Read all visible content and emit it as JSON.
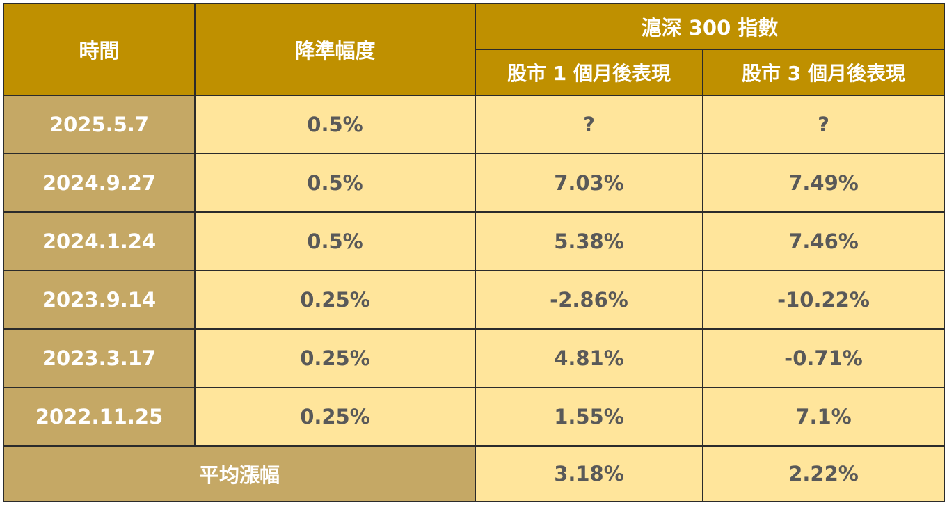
{
  "chart_data": {
    "type": "table",
    "header": {
      "time": "時間",
      "cut": "降準幅度",
      "index_group": "滬深 300 指數",
      "m1": "股市 1 個月後表現",
      "m3": "股市 3 個月後表現"
    },
    "rows": [
      {
        "date": "2025.5.7",
        "cut": "0.5%",
        "m1": "?",
        "m3": "?"
      },
      {
        "date": "2024.9.27",
        "cut": "0.5%",
        "m1": "7.03%",
        "m3": "7.49%"
      },
      {
        "date": "2024.1.24",
        "cut": "0.5%",
        "m1": "5.38%",
        "m3": "7.46%"
      },
      {
        "date": "2023.9.14",
        "cut": "0.25%",
        "m1": "-2.86%",
        "m3": "-10.22%"
      },
      {
        "date": "2023.3.17",
        "cut": "0.25%",
        "m1": "4.81%",
        "m3": "-0.71%"
      },
      {
        "date": "2022.11.25",
        "cut": "0.25%",
        "m1": "1.55%",
        "m3": "7.1%"
      }
    ],
    "average": {
      "label": "平均漲幅",
      "m1": "3.18%",
      "m3": "2.22%"
    }
  },
  "colors": {
    "header_bg": "#bf9000",
    "date_bg": "#c5a865",
    "value_bg": "#ffe59b",
    "value_text": "#595959",
    "header_text": "#ffffff"
  }
}
